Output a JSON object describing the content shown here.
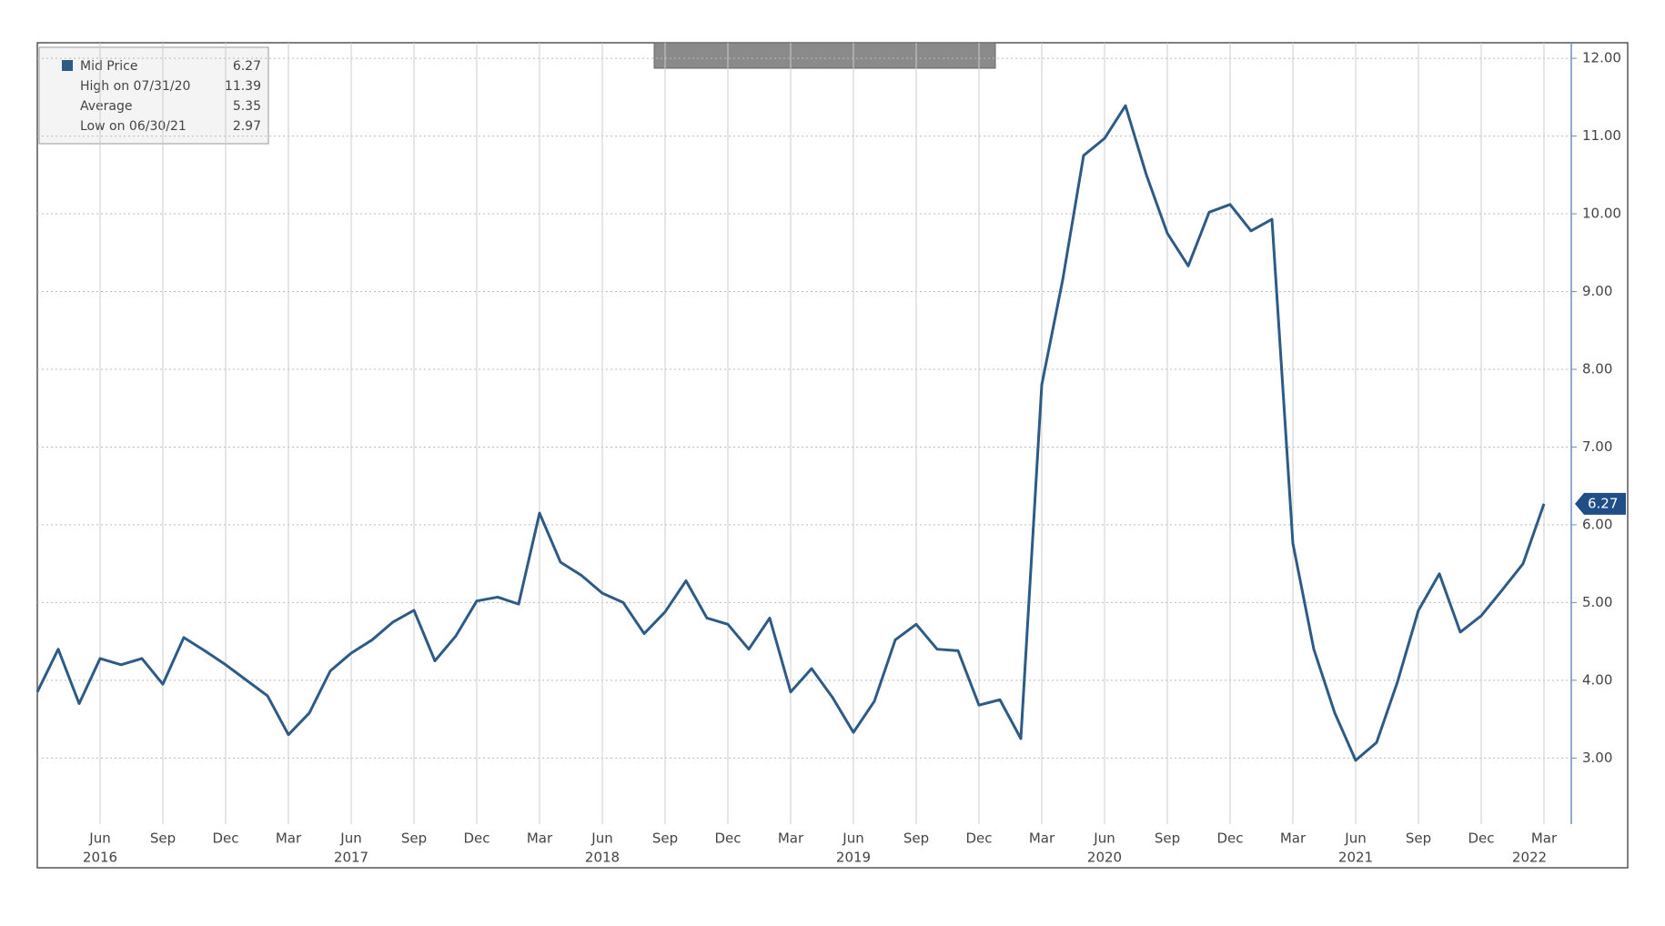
{
  "chart_data": {
    "type": "line",
    "categories": [
      null,
      null,
      null,
      "Jun",
      null,
      null,
      "Sep",
      null,
      null,
      "Dec",
      null,
      null,
      "Mar",
      null,
      null,
      "Jun",
      null,
      null,
      "Sep",
      null,
      null,
      "Dec",
      null,
      null,
      "Mar",
      null,
      null,
      "Jun",
      null,
      null,
      "Sep",
      null,
      null,
      "Dec",
      null,
      null,
      "Mar",
      null,
      null,
      "Jun",
      null,
      null,
      "Sep",
      null,
      null,
      "Dec",
      null,
      null,
      "Mar",
      null,
      null,
      "Jun",
      null,
      null,
      "Sep",
      null,
      null,
      "Dec",
      null,
      null,
      "Mar",
      null,
      null,
      "Jun",
      null,
      null,
      "Sep",
      null,
      null,
      "Dec",
      null,
      null,
      "Mar"
    ],
    "years": [
      null,
      null,
      null,
      "2016",
      null,
      null,
      null,
      null,
      null,
      null,
      null,
      null,
      null,
      null,
      null,
      "2017",
      null,
      null,
      null,
      null,
      null,
      null,
      null,
      null,
      null,
      null,
      null,
      "2018",
      null,
      null,
      null,
      null,
      null,
      null,
      null,
      null,
      null,
      null,
      null,
      "2019",
      null,
      null,
      null,
      null,
      null,
      null,
      null,
      null,
      null,
      null,
      null,
      "2020",
      null,
      null,
      null,
      null,
      null,
      null,
      null,
      null,
      null,
      null,
      null,
      "2021",
      null,
      null,
      null,
      null,
      null,
      null,
      null,
      null,
      "2022"
    ],
    "series": [
      {
        "name": "Mid Price",
        "color": "#2d5b86",
        "values": [
          3.85,
          4.4,
          3.7,
          4.28,
          4.2,
          4.28,
          3.95,
          4.55,
          4.38,
          4.2,
          4.0,
          3.8,
          3.3,
          3.58,
          4.12,
          4.35,
          4.52,
          4.75,
          4.9,
          4.25,
          4.57,
          5.02,
          5.07,
          4.98,
          6.15,
          5.52,
          5.35,
          5.12,
          5.0,
          4.6,
          4.88,
          5.28,
          4.8,
          4.72,
          4.4,
          4.8,
          3.85,
          4.15,
          3.78,
          3.33,
          3.73,
          4.52,
          4.72,
          4.4,
          4.38,
          3.68,
          3.75,
          3.25,
          7.8,
          9.15,
          10.75,
          10.97,
          11.39,
          10.5,
          9.75,
          9.33,
          10.02,
          10.12,
          9.78,
          9.93,
          5.76,
          4.4,
          3.58,
          2.97,
          3.2,
          3.98,
          4.9,
          5.37,
          4.62,
          4.83,
          5.16,
          5.5,
          6.27
        ]
      }
    ],
    "legend": {
      "high_label": "High on 07/31/20",
      "average_label": "Average",
      "average": 5.35,
      "low_label": "Low on 06/30/21"
    },
    "ylim": [
      2.15,
      12.2
    ],
    "yticks": [
      {
        "value": 3,
        "label": "3.00"
      },
      {
        "value": 4,
        "label": "4.00"
      },
      {
        "value": 5,
        "label": "5.00"
      },
      {
        "value": 6,
        "label": "6.00"
      },
      {
        "value": 7,
        "label": "7.00"
      },
      {
        "value": 8,
        "label": "8.00"
      },
      {
        "value": 9,
        "label": "9.00"
      },
      {
        "value": 10,
        "label": "10.00"
      },
      {
        "value": 11,
        "label": "11.00"
      },
      {
        "value": 12,
        "label": "12.00"
      }
    ],
    "grid": true
  }
}
